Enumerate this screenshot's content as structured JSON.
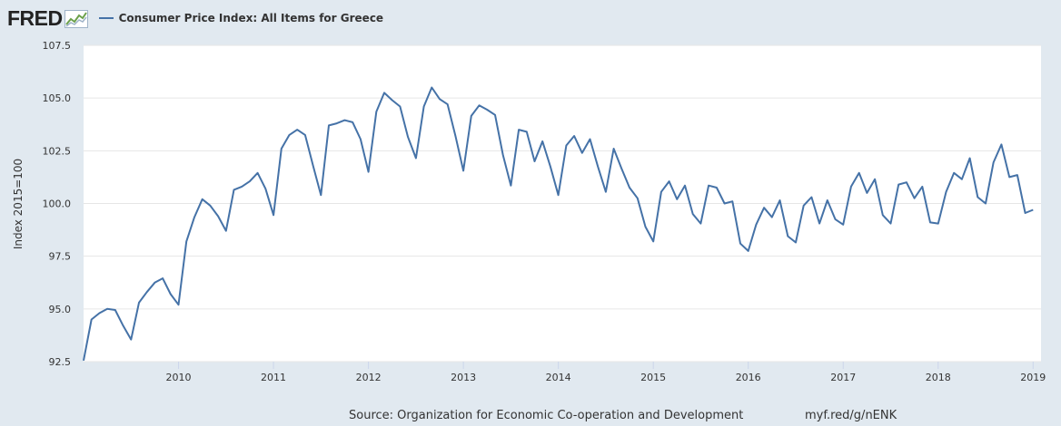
{
  "header": {
    "logo_text": "FRED",
    "logo_icon": "fred-chart-icon",
    "series_label": "Consumer Price Index: All Items for Greece",
    "line_color": "#4572a7"
  },
  "footer": {
    "source": "Source: Organization for Economic Co-operation and Development",
    "url": "myf.red/g/nENK"
  },
  "chart_data": {
    "type": "line",
    "title": "Consumer Price Index: All Items for Greece",
    "ylabel": "Index 2015=100",
    "xlabel": "",
    "x_ticks": [
      "2010",
      "2011",
      "2012",
      "2013",
      "2014",
      "2015",
      "2016",
      "2017",
      "2018",
      "2019"
    ],
    "y_ticks": [
      "92.5",
      "95.0",
      "97.5",
      "100.0",
      "102.5",
      "105.0",
      "107.5"
    ],
    "ylim": [
      92.5,
      107.5
    ],
    "xlim": [
      "2009-01",
      "2019-02"
    ],
    "grid": true,
    "series": [
      {
        "name": "Consumer Price Index: All Items for Greece",
        "color": "#4572a7",
        "start": "2009-01",
        "frequency": "monthly",
        "values": [
          92.55,
          94.5,
          94.8,
          95.0,
          94.95,
          94.2,
          93.55,
          95.3,
          95.8,
          96.25,
          96.45,
          95.7,
          95.2,
          98.2,
          99.35,
          100.2,
          99.9,
          99.4,
          98.7,
          100.65,
          100.8,
          101.05,
          101.45,
          100.7,
          99.45,
          102.6,
          103.25,
          103.5,
          103.25,
          101.8,
          100.4,
          103.7,
          103.8,
          103.95,
          103.85,
          103.05,
          101.5,
          104.35,
          105.25,
          104.9,
          104.6,
          103.15,
          102.15,
          104.6,
          105.5,
          104.95,
          104.7,
          103.2,
          101.55,
          104.15,
          104.65,
          104.45,
          104.2,
          102.3,
          100.85,
          103.5,
          103.4,
          102.0,
          102.95,
          101.75,
          100.4,
          102.75,
          103.2,
          102.4,
          103.05,
          101.75,
          100.55,
          102.6,
          101.65,
          100.75,
          100.25,
          98.9,
          98.2,
          100.55,
          101.05,
          100.2,
          100.85,
          99.5,
          99.05,
          100.85,
          100.75,
          100.0,
          100.1,
          98.1,
          97.75,
          99.0,
          99.8,
          99.35,
          100.15,
          98.45,
          98.15,
          99.9,
          100.3,
          99.05,
          100.15,
          99.25,
          99.0,
          100.8,
          101.45,
          100.5,
          101.15,
          99.45,
          99.05,
          100.9,
          101.0,
          100.25,
          100.8,
          99.1,
          99.05,
          100.55,
          101.45,
          101.15,
          102.15,
          100.3,
          100.0,
          101.95,
          102.8,
          101.25,
          101.35,
          99.55,
          99.7
        ]
      }
    ]
  }
}
